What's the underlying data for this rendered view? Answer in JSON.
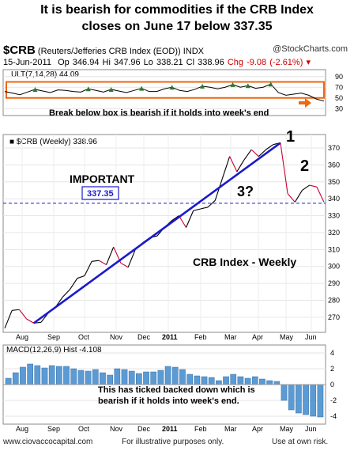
{
  "headline": {
    "line1": "It is bearish for commodities if the CRB Index",
    "line2": "closes on June 17 below 337.35"
  },
  "header": {
    "symbol": "$CRB",
    "name": "(Reuters/Jefferies CRB Index (EOD))",
    "exchange": "INDX",
    "logo": "@StockCharts.com",
    "date": "15-Jun-2011",
    "open": "Op 346.94",
    "high": "Hi 347.96",
    "low": "Lo 338.21",
    "close": "Cl 338.96",
    "change": "Chg -9.08 (-2.61%)"
  },
  "colors": {
    "price_up": "#000000",
    "price_down": "#cc0033",
    "trendline": "#1a1acc",
    "box": "#ee6611",
    "macd_hist": "#5b9bd5",
    "support": "#1a1acc"
  },
  "chart_data": [
    {
      "type": "line",
      "panel": "ULT",
      "title": "ULT(7,14,28) 44.09",
      "y_ticks": [
        30,
        50,
        70,
        90
      ],
      "ylim": [
        20,
        100
      ],
      "series": [
        {
          "values": [
            62,
            59,
            56,
            61,
            66,
            63,
            60,
            65,
            64,
            62,
            61,
            67,
            64,
            61,
            66,
            63,
            60,
            64,
            68,
            62,
            62,
            67,
            70,
            64,
            62,
            66,
            72,
            70,
            67,
            70,
            75,
            70,
            73,
            68,
            70,
            76,
            60,
            55,
            57,
            59,
            55,
            48,
            44
          ]
        }
      ],
      "box_range": [
        50,
        80
      ]
    },
    {
      "type": "line",
      "panel": "price",
      "title": "$CRB (Weekly) 338.96",
      "x_ticks": [
        "Aug",
        "Sep",
        "Oct",
        "Nov",
        "Dec",
        "2011",
        "Feb",
        "Mar",
        "Apr",
        "May",
        "Jun"
      ],
      "y_ticks": [
        270,
        280,
        290,
        300,
        310,
        320,
        330,
        340,
        350,
        360,
        370
      ],
      "ylim": [
        262,
        377
      ],
      "values": [
        263.5,
        274,
        274.5,
        269,
        266.5,
        267,
        272.5,
        276,
        282,
        286.5,
        293,
        294.5,
        303,
        303.5,
        301,
        311.5,
        302,
        299.5,
        310,
        314,
        317,
        318,
        323,
        327,
        330,
        323,
        333,
        334,
        335,
        339,
        352,
        365,
        356,
        363,
        369,
        365,
        369,
        372,
        373,
        343,
        338,
        345,
        348,
        347,
        338
      ],
      "trendline": [
        [
          4,
          266.5
        ],
        [
          38,
          373
        ]
      ],
      "support": 337.35
    },
    {
      "type": "bar",
      "panel": "MACD",
      "title": "MACD(12,26,9) Hist -4.108",
      "y_ticks": [
        4,
        2,
        0,
        -2,
        -4
      ],
      "ylim": [
        -4.8,
        4.8
      ],
      "values": [
        0.8,
        1.5,
        2.2,
        2.6,
        2.4,
        2.1,
        2.4,
        2.3,
        2.3,
        2.0,
        1.8,
        1.7,
        1.9,
        1.5,
        1.2,
        2.0,
        1.9,
        1.7,
        1.4,
        1.6,
        1.6,
        1.8,
        2.3,
        2.2,
        1.9,
        1.3,
        1.1,
        1.0,
        0.9,
        0.5,
        1.0,
        1.3,
        1.0,
        0.8,
        1.0,
        0.7,
        0.5,
        0.4,
        -2.0,
        -3.2,
        -3.6,
        -3.8,
        -4.0,
        -4.1
      ]
    }
  ],
  "annotations": {
    "box_note": "Break below box is bearish if it holds into week's end",
    "important": "IMPORTANT",
    "support_value": "337.35",
    "marker_1": "1",
    "marker_2": "2",
    "marker_3": "3?",
    "chart_label": "CRB Index - Weekly",
    "macd_note_1": "This has ticked backed down which is",
    "macd_note_2": "bearish if it holds into week's end."
  },
  "footer": {
    "site": "www.ciovaccocapital.com",
    "disclaimer": "For illustrative purposes only.",
    "risk": "Use at own risk."
  }
}
